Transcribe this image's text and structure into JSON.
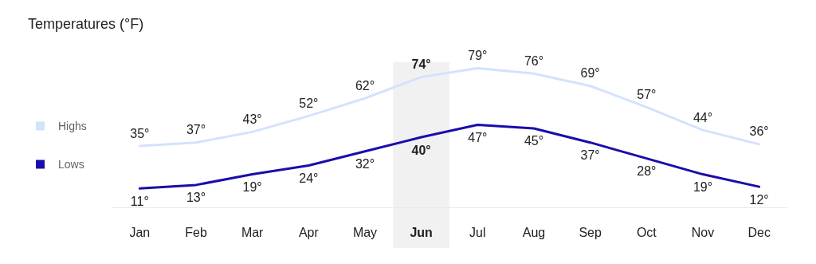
{
  "chart_data": {
    "type": "line",
    "title": "Temperatures (°F)",
    "categories": [
      "Jan",
      "Feb",
      "Mar",
      "Apr",
      "May",
      "Jun",
      "Jul",
      "Aug",
      "Sep",
      "Oct",
      "Nov",
      "Dec"
    ],
    "series": [
      {
        "name": "Highs",
        "color": "#d2e3fc",
        "values": [
          35,
          37,
          43,
          52,
          62,
          74,
          79,
          76,
          69,
          57,
          44,
          36
        ],
        "value_labels": [
          "35°",
          "37°",
          "43°",
          "52°",
          "62°",
          "74°",
          "79°",
          "76°",
          "69°",
          "57°",
          "44°",
          "36°"
        ]
      },
      {
        "name": "Lows",
        "color": "#1a0dab",
        "values": [
          11,
          13,
          19,
          24,
          32,
          40,
          47,
          45,
          37,
          28,
          19,
          12
        ],
        "value_labels": [
          "11°",
          "13°",
          "19°",
          "24°",
          "32°",
          "40°",
          "47°",
          "45°",
          "37°",
          "28°",
          "19°",
          "12°"
        ]
      }
    ],
    "bands": [
      {
        "axis": "x",
        "from": "Jun",
        "to": "Jun",
        "color": "#f1f1f1"
      }
    ],
    "marker": "none",
    "legend": "left",
    "grid": false,
    "line_style": "solid"
  }
}
